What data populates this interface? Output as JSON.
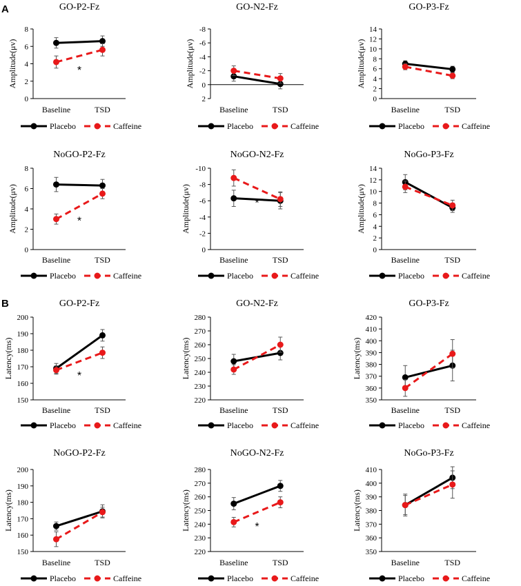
{
  "panel_labels": [
    "A",
    "B"
  ],
  "categories": [
    "Baseline",
    "TSD"
  ],
  "legend": [
    "Placebo",
    "Caffeine"
  ],
  "colors": {
    "placebo": "#000000",
    "caffeine": "#e8191a"
  },
  "chart_data": [
    {
      "type": "line",
      "title": "GO-P2-Fz",
      "ylabel": "Amplitude(μv)",
      "ylim": [
        0,
        8
      ],
      "yticks": [
        0,
        2,
        4,
        6,
        8
      ],
      "inverted": false,
      "categories": [
        "Baseline",
        "TSD"
      ],
      "series": [
        {
          "name": "Placebo",
          "values": [
            6.4,
            6.6
          ],
          "err": [
            0.6,
            0.6
          ]
        },
        {
          "name": "Caffeine",
          "values": [
            4.2,
            5.6
          ],
          "err": [
            0.7,
            0.7
          ]
        }
      ],
      "annotation": "*"
    },
    {
      "type": "line",
      "title": "GO-N2-Fz",
      "ylabel": "Amplitude(μv)",
      "ylim": [
        2,
        -8
      ],
      "yticks": [
        -8,
        -6,
        -4,
        -2,
        0,
        2
      ],
      "ytick_labels": [
        "-8",
        "-6",
        "-4",
        "-2",
        "0",
        "2"
      ],
      "inverted": true,
      "categories": [
        "Baseline",
        "TSD"
      ],
      "series": [
        {
          "name": "Placebo",
          "values": [
            -1.2,
            -0.1
          ],
          "err": [
            0.7,
            0.7
          ]
        },
        {
          "name": "Caffeine",
          "values": [
            -2.0,
            -0.9
          ],
          "err": [
            0.7,
            0.7
          ]
        }
      ],
      "annotation": ""
    },
    {
      "type": "line",
      "title": "GO-P3-Fz",
      "ylabel": "Amplitude(μv)",
      "ylim": [
        0,
        14
      ],
      "yticks": [
        0,
        2,
        4,
        6,
        8,
        10,
        12,
        14
      ],
      "inverted": false,
      "categories": [
        "Baseline",
        "TSD"
      ],
      "series": [
        {
          "name": "Placebo",
          "values": [
            7.0,
            5.9
          ],
          "err": [
            0.6,
            0.6
          ]
        },
        {
          "name": "Caffeine",
          "values": [
            6.4,
            4.6
          ],
          "err": [
            0.6,
            0.6
          ]
        }
      ],
      "annotation": ""
    },
    {
      "type": "line",
      "title": "NoGO-P2-Fz",
      "ylabel": "Amplitude(μv)",
      "ylim": [
        0,
        8
      ],
      "yticks": [
        0,
        2,
        4,
        6,
        8
      ],
      "inverted": false,
      "categories": [
        "Baseline",
        "TSD"
      ],
      "series": [
        {
          "name": "Placebo",
          "values": [
            6.4,
            6.3
          ],
          "err": [
            0.7,
            0.6
          ]
        },
        {
          "name": "Caffeine",
          "values": [
            3.0,
            5.5
          ],
          "err": [
            0.5,
            0.5
          ]
        }
      ],
      "annotation": "*"
    },
    {
      "type": "line",
      "title": "NoGO-N2-Fz",
      "ylabel": "Amplitude(μv)",
      "ylim": [
        0,
        -10
      ],
      "yticks": [
        -10,
        -8,
        -6,
        -4,
        -2,
        0
      ],
      "ytick_labels": [
        "-10",
        "-8",
        "-6",
        "-4",
        "-2",
        "0"
      ],
      "inverted": true,
      "categories": [
        "Baseline",
        "TSD"
      ],
      "series": [
        {
          "name": "Placebo",
          "values": [
            -6.3,
            -6.0
          ],
          "err": [
            1.0,
            1.0
          ]
        },
        {
          "name": "Caffeine",
          "values": [
            -8.8,
            -6.2
          ],
          "err": [
            1.0,
            0.9
          ]
        }
      ],
      "annotation": "*"
    },
    {
      "type": "line",
      "title": "NoGo-P3-Fz",
      "ylabel": "Amplitude(μv)",
      "ylim": [
        0,
        14
      ],
      "yticks": [
        0,
        2,
        4,
        6,
        8,
        10,
        12,
        14
      ],
      "inverted": false,
      "categories": [
        "Baseline",
        "TSD"
      ],
      "series": [
        {
          "name": "Placebo",
          "values": [
            11.6,
            7.2
          ],
          "err": [
            1.3,
            0.8
          ]
        },
        {
          "name": "Caffeine",
          "values": [
            10.8,
            7.6
          ],
          "err": [
            1.0,
            0.9
          ]
        }
      ],
      "annotation": ""
    },
    {
      "type": "line",
      "title": "GO-P2-Fz",
      "ylabel": "Latency(ms)",
      "ylim": [
        150,
        200
      ],
      "yticks": [
        150,
        160,
        170,
        180,
        190,
        200
      ],
      "inverted": false,
      "categories": [
        "Baseline",
        "TSD"
      ],
      "series": [
        {
          "name": "Placebo",
          "values": [
            169,
            189
          ],
          "err": [
            3,
            3.5
          ]
        },
        {
          "name": "Caffeine",
          "values": [
            168,
            178.5
          ],
          "err": [
            2.5,
            3.5
          ]
        }
      ],
      "annotation": "*"
    },
    {
      "type": "line",
      "title": "GO-N2-Fz",
      "ylabel": "Latency(ms)",
      "ylim": [
        220,
        280
      ],
      "yticks": [
        220,
        230,
        240,
        250,
        260,
        270,
        280
      ],
      "inverted": false,
      "categories": [
        "Baseline",
        "TSD"
      ],
      "series": [
        {
          "name": "Placebo",
          "values": [
            248,
            254
          ],
          "err": [
            5,
            5
          ]
        },
        {
          "name": "Caffeine",
          "values": [
            242,
            260
          ],
          "err": [
            3.5,
            5.5
          ]
        }
      ],
      "annotation": ""
    },
    {
      "type": "line",
      "title": "GO-P3-Fz",
      "ylabel": "Latency(ms)",
      "ylim": [
        350,
        420
      ],
      "yticks": [
        350,
        360,
        370,
        380,
        390,
        400,
        410,
        420
      ],
      "inverted": false,
      "categories": [
        "Baseline",
        "TSD"
      ],
      "series": [
        {
          "name": "Placebo",
          "values": [
            369,
            379
          ],
          "err": [
            10,
            13
          ]
        },
        {
          "name": "Caffeine",
          "values": [
            360,
            389
          ],
          "err": [
            7,
            12
          ]
        }
      ],
      "annotation": ""
    },
    {
      "type": "line",
      "title": "NoGO-P2-Fz",
      "ylabel": "Latency(ms)",
      "ylim": [
        150,
        200
      ],
      "yticks": [
        150,
        160,
        170,
        180,
        190,
        200
      ],
      "inverted": false,
      "categories": [
        "Baseline",
        "TSD"
      ],
      "series": [
        {
          "name": "Placebo",
          "values": [
            165.5,
            174.5
          ],
          "err": [
            2.5,
            4
          ]
        },
        {
          "name": "Caffeine",
          "values": [
            157.5,
            174
          ],
          "err": [
            4.5,
            3
          ]
        }
      ],
      "annotation": ""
    },
    {
      "type": "line",
      "title": "NoGO-N2-Fz",
      "ylabel": "Latency(ms)",
      "ylim": [
        220,
        280
      ],
      "yticks": [
        220,
        230,
        240,
        250,
        260,
        270,
        280
      ],
      "inverted": false,
      "categories": [
        "Baseline",
        "TSD"
      ],
      "series": [
        {
          "name": "Placebo",
          "values": [
            255,
            268
          ],
          "err": [
            4.5,
            4
          ]
        },
        {
          "name": "Caffeine",
          "values": [
            241.5,
            256
          ],
          "err": [
            3.5,
            4
          ]
        }
      ],
      "annotation": "*"
    },
    {
      "type": "line",
      "title": "NoGo-P3-Fz",
      "ylabel": "Latency(ms)",
      "ylim": [
        350,
        410
      ],
      "yticks": [
        350,
        360,
        370,
        380,
        390,
        400,
        410
      ],
      "inverted": false,
      "categories": [
        "Baseline",
        "TSD"
      ],
      "series": [
        {
          "name": "Placebo",
          "values": [
            384,
            404
          ],
          "err": [
            8,
            8
          ]
        },
        {
          "name": "Caffeine",
          "values": [
            384,
            399
          ],
          "err": [
            7,
            10
          ]
        }
      ],
      "annotation": ""
    }
  ]
}
